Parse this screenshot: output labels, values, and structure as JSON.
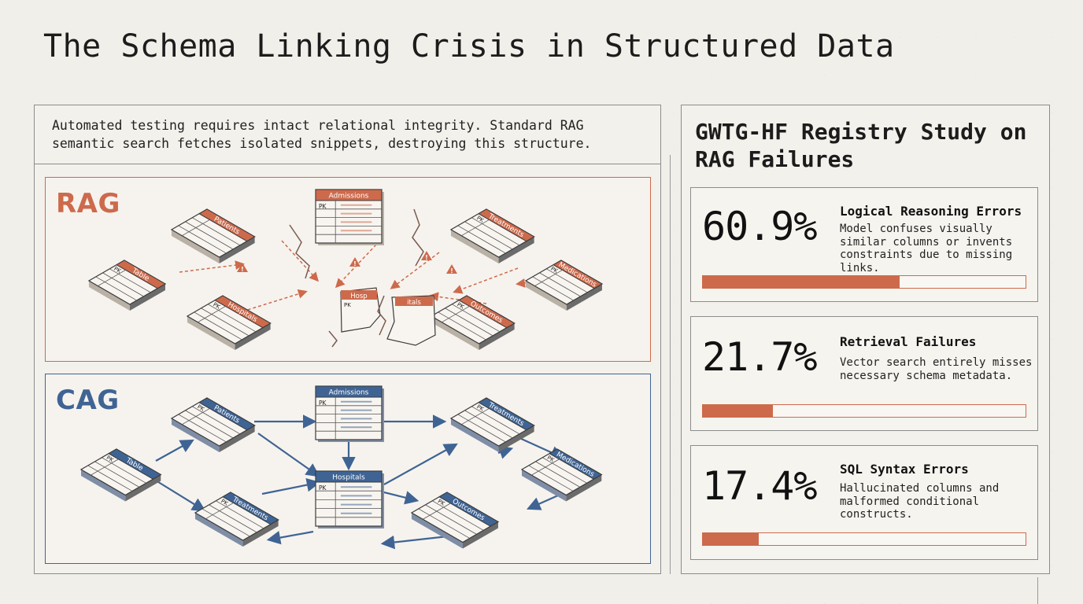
{
  "page": {
    "title": "The Schema Linking Crisis in Structured Data",
    "intro": "Automated testing requires intact relational integrity. Standard RAG semantic search fetches isolated snippets, destroying this structure."
  },
  "colors": {
    "rag": "#cd6a4c",
    "cag": "#3f6494",
    "background": "#f1efe9"
  },
  "rag": {
    "label": "RAG",
    "tables": [
      {
        "name": "Admissions",
        "pk": "PK",
        "style": "flat"
      },
      {
        "name": "Patients",
        "pk": "",
        "style": "iso"
      },
      {
        "name": "Treatments",
        "pk": "PK",
        "style": "iso"
      },
      {
        "name": "Table",
        "pk": "PK",
        "style": "iso"
      },
      {
        "name": "Medications",
        "pk": "PK",
        "style": "iso"
      },
      {
        "name": "Hospitals",
        "pk": "PK",
        "style": "iso"
      },
      {
        "name": "Outcomes",
        "pk": "PK",
        "style": "iso"
      },
      {
        "name": "Hosp",
        "pk": "PK",
        "style": "broken"
      },
      {
        "name": "itals",
        "pk": "",
        "style": "broken"
      }
    ],
    "warning_icon": "warning-triangle-icon",
    "crack_icon": "crack-icon"
  },
  "cag": {
    "label": "CAG",
    "tables": [
      {
        "name": "Admissions",
        "pk": "PK",
        "style": "flat"
      },
      {
        "name": "Patients",
        "pk": "PK",
        "style": "iso"
      },
      {
        "name": "Treatments",
        "pk": "PK",
        "style": "iso"
      },
      {
        "name": "Table",
        "pk": "PK",
        "style": "iso"
      },
      {
        "name": "Medications",
        "pk": "PK",
        "style": "iso"
      },
      {
        "name": "Hospitals",
        "pk": "PK",
        "style": "flat"
      },
      {
        "name": "Treatments",
        "pk": "PK",
        "style": "iso"
      },
      {
        "name": "Outcomes",
        "pk": "PK",
        "style": "iso"
      }
    ]
  },
  "study": {
    "title": "GWTG-HF Registry Study on RAG Failures",
    "stats": [
      {
        "percent": "60.9%",
        "value": 60.9,
        "title": "Logical Reasoning Errors",
        "description": "Model confuses visually similar columns or invents constraints due to missing links."
      },
      {
        "percent": "21.7%",
        "value": 21.7,
        "title": "Retrieval Failures",
        "description": "Vector search entirely misses necessary schema metadata."
      },
      {
        "percent": "17.4%",
        "value": 17.4,
        "title": "SQL Syntax Errors",
        "description": "Hallucinated columns and malformed conditional constructs."
      }
    ]
  }
}
